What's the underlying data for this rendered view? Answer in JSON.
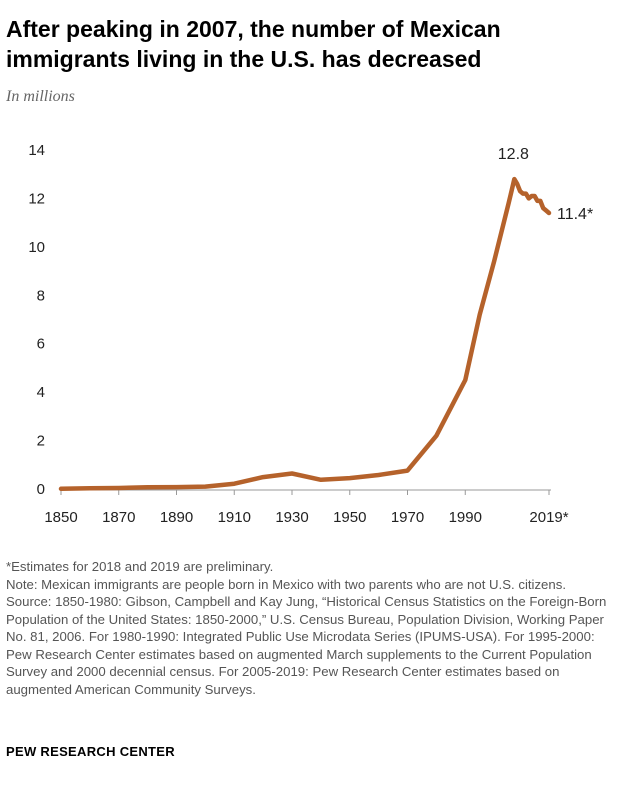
{
  "header": {
    "title": "After peaking in 2007, the number of Mexican immigrants living in the U.S. has decreased",
    "subtitle": "In millions"
  },
  "chart_data": {
    "type": "line",
    "title": "After peaking in 2007, the number of Mexican immigrants living in the U.S. has decreased",
    "subtitle": "In millions",
    "xlabel": "",
    "ylabel": "",
    "x_ticks": [
      "1850",
      "1870",
      "1890",
      "1910",
      "1930",
      "1950",
      "1970",
      "1990",
      "2019*"
    ],
    "y_ticks": [
      "0",
      "2",
      "4",
      "6",
      "8",
      "10",
      "12",
      "14"
    ],
    "xlim": [
      1850,
      2019
    ],
    "ylim": [
      0,
      14
    ],
    "grid": false,
    "line_color": "#b5622b",
    "series": [
      {
        "x": [
          1850,
          1860,
          1870,
          1880,
          1890,
          1900,
          1910,
          1920,
          1930,
          1940,
          1950,
          1960,
          1970,
          1980,
          1990,
          1995,
          2000,
          2005,
          2006,
          2007,
          2008,
          2009,
          2010,
          2011,
          2012,
          2013,
          2014,
          2015,
          2016,
          2017,
          2018,
          2019
        ],
        "y": [
          0.01,
          0.03,
          0.04,
          0.07,
          0.08,
          0.1,
          0.22,
          0.49,
          0.64,
          0.38,
          0.45,
          0.58,
          0.76,
          2.2,
          4.5,
          7.2,
          9.4,
          11.8,
          12.3,
          12.8,
          12.6,
          12.3,
          12.2,
          12.2,
          12.0,
          12.1,
          12.1,
          11.9,
          11.9,
          11.6,
          11.5,
          11.4
        ]
      }
    ],
    "annotations": [
      {
        "text": "12.8",
        "x": 2007,
        "y": 12.8
      },
      {
        "text": "11.4*",
        "x": 2019,
        "y": 11.4
      }
    ]
  },
  "footer": {
    "asterisk_note": "*Estimates for 2018 and 2019 are preliminary.",
    "note": "Note: Mexican immigrants are people born in Mexico with two parents who are not U.S. citizens.",
    "source": "Source: 1850-1980: Gibson, Campbell and Kay Jung, “Historical Census Statistics on the Foreign-Born Population of the United States: 1850-2000,” U.S. Census Bureau, Population Division, Working Paper No. 81, 2006. For 1980-1990: Integrated Public Use Microdata Series (IPUMS-USA). For 1995-2000: Pew Research Center estimates based on augmented March supplements to the Current Population Survey and 2000 decennial census. For 2005-2019: Pew Research Center estimates based on augmented American Community Surveys.",
    "logo_text": "PEW RESEARCH CENTER"
  }
}
